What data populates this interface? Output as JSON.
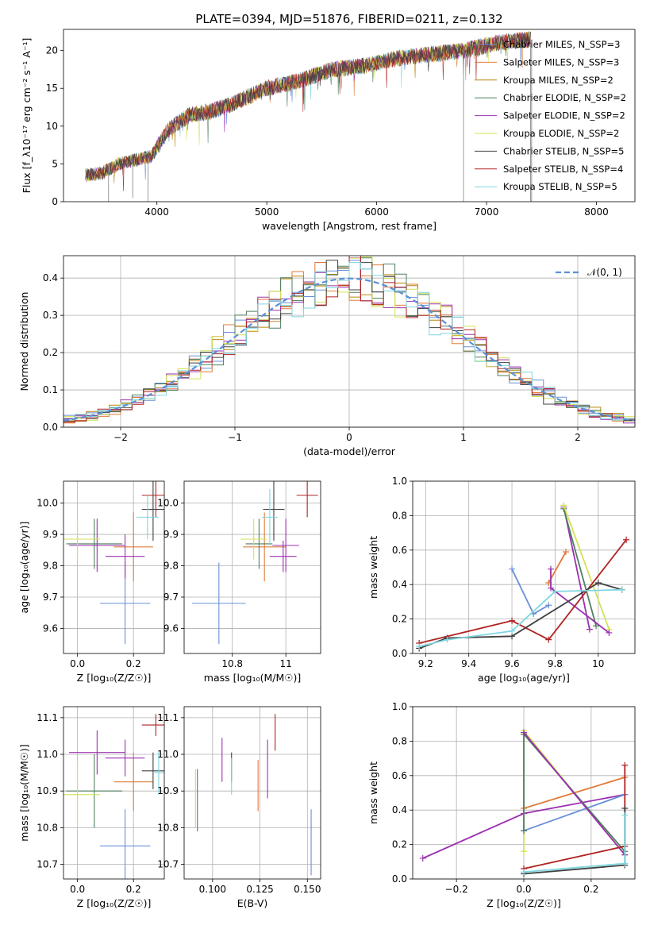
{
  "figure": {
    "title": "PLATE=0394, MJD=51876, FIBERID=0211, z=0.132"
  },
  "chart_data": [
    {
      "id": "spectrum",
      "type": "line",
      "xlabel": "wavelength [Angstrom, rest frame]",
      "ylabel": "Flux [f_λ10⁻¹⁷ erg cm⁻² s⁻¹ A⁻¹]",
      "xlim": [
        3150,
        8350
      ],
      "ylim": [
        0,
        22.8
      ],
      "xticks": [
        4000,
        5000,
        6000,
        7000,
        8000
      ],
      "yticks": [
        0,
        5,
        10,
        15,
        20
      ],
      "grid": false,
      "legend": "top-right",
      "data_envelope": {
        "x": [
          3350,
          3500,
          3650,
          3800,
          3950,
          4100,
          4300,
          4500,
          4700,
          5000,
          5300,
          5600,
          5900,
          6200,
          6500,
          6800,
          7100,
          7400
        ],
        "y": [
          3.5,
          3.8,
          5.0,
          5.5,
          6.0,
          9.5,
          11.5,
          12.0,
          13.0,
          15.0,
          16.0,
          17.5,
          18.0,
          19.0,
          19.5,
          20.0,
          21.0,
          21.5
        ]
      },
      "series": [
        {
          "name": "Chabrier MILES, N_SSP=3",
          "color": "#6a8fd8"
        },
        {
          "name": "Salpeter MILES, N_SSP=3",
          "color": "#e07b39"
        },
        {
          "name": "Kroupa MILES, N_SSP=2",
          "color": "#b8860b"
        },
        {
          "name": "Chabrier ELODIE, N_SSP=2",
          "color": "#4f7f5f"
        },
        {
          "name": "Salpeter ELODIE, N_SSP=2",
          "color": "#9b30b0"
        },
        {
          "name": "Kroupa ELODIE, N_SSP=2",
          "color": "#d4e157"
        },
        {
          "name": "Chabrier STELIB, N_SSP=5",
          "color": "#404040"
        },
        {
          "name": "Salpeter STELIB, N_SSP=4",
          "color": "#b22222"
        },
        {
          "name": "Kroupa STELIB, N_SSP=5",
          "color": "#7fd6e0"
        }
      ]
    },
    {
      "id": "residuals",
      "type": "histogram",
      "xlabel": "(data-model)/error",
      "ylabel": "Normed distribution",
      "xlim": [
        -2.5,
        2.5
      ],
      "ylim": [
        0,
        0.46
      ],
      "xticks": [
        -2,
        -1,
        0,
        1,
        2
      ],
      "yticks": [
        0.0,
        0.1,
        0.2,
        0.3,
        0.4
      ],
      "grid": true,
      "legend": "top-right",
      "reference_curve": {
        "name": "𝒩(0, 1)",
        "mean": 0,
        "sigma": 1,
        "color": "#5b8fd6"
      },
      "bins": {
        "start": -2.5,
        "width": 0.1
      }
    },
    {
      "id": "age-vs-Z",
      "type": "errorbar",
      "xlabel": "Z [log₁₀(Z/Z☉)]",
      "ylabel": "age  [log₁₀(age/yr)]",
      "xlim": [
        -0.05,
        0.31
      ],
      "ylim": [
        9.52,
        10.07
      ],
      "xticks": [
        0.0,
        0.2
      ],
      "yticks": [
        9.6,
        9.7,
        9.8,
        9.9,
        10.0
      ],
      "grid": true,
      "points": [
        {
          "series": 0,
          "x": 0.17,
          "xerr": 0.09,
          "y": 9.68,
          "yerr": 0.13
        },
        {
          "series": 1,
          "x": 0.2,
          "xerr": 0.07,
          "y": 9.86,
          "yerr": 0.11
        },
        {
          "series": 3,
          "x": 0.06,
          "xerr": 0.1,
          "y": 9.87,
          "yerr": 0.08
        },
        {
          "series": 4,
          "x": 0.07,
          "xerr": 0.1,
          "y": 9.865,
          "yerr": 0.085
        },
        {
          "series": 5,
          "x": 0.0,
          "xerr": 0.08,
          "y": 9.885,
          "yerr": 0.065
        },
        {
          "series": 6,
          "x": 0.27,
          "xerr": 0.04,
          "y": 9.98,
          "yerr": 0.1
        },
        {
          "series": 7,
          "x": 0.28,
          "xerr": 0.05,
          "y": 10.025,
          "yerr": 0.07
        },
        {
          "series": 8,
          "x": 0.25,
          "xerr": 0.04,
          "y": 9.955,
          "yerr": 0.07
        },
        {
          "series": 4,
          "x": 0.17,
          "xerr": 0.07,
          "y": 9.83,
          "yerr": 0.07
        }
      ]
    },
    {
      "id": "age-vs-mass",
      "type": "errorbar",
      "xlabel": "mass [log₁₀(M/M☉)]",
      "ylabel": "",
      "xlim": [
        10.62,
        11.13
      ],
      "ylim": [
        9.52,
        10.07
      ],
      "xticks": [
        10.8,
        11.0
      ],
      "yticks": [
        9.6,
        9.7,
        9.8,
        9.9,
        10.0
      ],
      "grid": true,
      "points": [
        {
          "series": 0,
          "x": 10.75,
          "xerr": 0.1,
          "y": 9.68,
          "yerr": 0.13
        },
        {
          "series": 1,
          "x": 10.92,
          "xerr": 0.08,
          "y": 9.86,
          "yerr": 0.11
        },
        {
          "series": 3,
          "x": 10.9,
          "xerr": 0.05,
          "y": 9.87,
          "yerr": 0.08
        },
        {
          "series": 4,
          "x": 11.0,
          "xerr": 0.05,
          "y": 9.865,
          "yerr": 0.085
        },
        {
          "series": 5,
          "x": 10.88,
          "xerr": 0.05,
          "y": 9.885,
          "yerr": 0.065
        },
        {
          "series": 6,
          "x": 10.955,
          "xerr": 0.04,
          "y": 9.98,
          "yerr": 0.1
        },
        {
          "series": 7,
          "x": 11.08,
          "xerr": 0.04,
          "y": 10.025,
          "yerr": 0.07
        },
        {
          "series": 8,
          "x": 10.94,
          "xerr": 0.03,
          "y": 9.955,
          "yerr": 0.09
        },
        {
          "series": 4,
          "x": 10.99,
          "xerr": 0.05,
          "y": 9.83,
          "yerr": 0.05
        }
      ]
    },
    {
      "id": "weight-vs-age",
      "type": "line",
      "xlabel": "age  [log₁₀(age/yr)]",
      "ylabel": "mass weight",
      "xlim": [
        9.14,
        10.17
      ],
      "ylim": [
        0,
        1.0
      ],
      "xticks": [
        9.2,
        9.4,
        9.6,
        9.8,
        10.0
      ],
      "yticks": [
        0.0,
        0.2,
        0.4,
        0.6,
        0.8,
        1.0
      ],
      "grid": true,
      "lines": [
        {
          "series": 0,
          "x": [
            9.6,
            9.7,
            9.77
          ],
          "y": [
            0.49,
            0.23,
            0.28
          ]
        },
        {
          "series": 1,
          "x": [
            9.77,
            9.85
          ],
          "y": [
            0.41,
            0.59
          ]
        },
        {
          "series": 4,
          "x": [
            9.84,
            9.96
          ],
          "y": [
            0.85,
            0.14
          ]
        },
        {
          "series": 3,
          "x": [
            9.84,
            9.99
          ],
          "y": [
            0.84,
            0.16
          ]
        },
        {
          "series": 5,
          "x": [
            9.84,
            10.05
          ],
          "y": [
            0.86,
            0.14
          ]
        },
        {
          "series": 4,
          "x": [
            9.78,
            9.78,
            10.05
          ],
          "y": [
            0.49,
            0.38,
            0.12
          ]
        },
        {
          "series": 7,
          "x": [
            9.17,
            9.6,
            9.77,
            10.13
          ],
          "y": [
            0.06,
            0.19,
            0.08,
            0.66
          ]
        },
        {
          "series": 6,
          "x": [
            9.17,
            9.3,
            9.6,
            10.0,
            10.11
          ],
          "y": [
            0.03,
            0.09,
            0.1,
            0.41,
            0.37
          ]
        },
        {
          "series": 8,
          "x": [
            9.17,
            9.3,
            9.6,
            9.8,
            10.11
          ],
          "y": [
            0.04,
            0.08,
            0.13,
            0.36,
            0.37
          ]
        }
      ]
    },
    {
      "id": "mass-vs-Z",
      "type": "errorbar",
      "xlabel": "Z [log₁₀(Z/Z☉)]",
      "ylabel": "mass [log₁₀(M/M☉)]",
      "xlim": [
        -0.05,
        0.31
      ],
      "ylim": [
        10.66,
        11.13
      ],
      "xticks": [
        0.0,
        0.2
      ],
      "yticks": [
        10.7,
        10.8,
        10.9,
        11.0,
        11.1
      ],
      "grid": true,
      "points": [
        {
          "series": 0,
          "x": 0.17,
          "xerr": 0.09,
          "y": 10.75,
          "yerr": 0.1
        },
        {
          "series": 1,
          "x": 0.2,
          "xerr": 0.07,
          "y": 10.925,
          "yerr": 0.08
        },
        {
          "series": 3,
          "x": 0.06,
          "xerr": 0.1,
          "y": 10.9,
          "yerr": 0.1
        },
        {
          "series": 4,
          "x": 0.07,
          "xerr": 0.1,
          "y": 11.005,
          "yerr": 0.06
        },
        {
          "series": 5,
          "x": 0.0,
          "xerr": 0.08,
          "y": 10.89,
          "yerr": 0.09
        },
        {
          "series": 6,
          "x": 0.27,
          "xerr": 0.04,
          "y": 10.955,
          "yerr": 0.05
        },
        {
          "series": 7,
          "x": 0.28,
          "xerr": 0.05,
          "y": 11.08,
          "yerr": 0.03
        },
        {
          "series": 8,
          "x": 0.29,
          "xerr": 0.02,
          "y": 10.95,
          "yerr": 0.06
        },
        {
          "series": 4,
          "x": 0.17,
          "xerr": 0.07,
          "y": 10.99,
          "yerr": 0.05
        }
      ]
    },
    {
      "id": "mass-vs-EBV",
      "type": "errorbar",
      "xlabel": "E(B-V)",
      "ylabel": "",
      "xlim": [
        0.085,
        0.157
      ],
      "ylim": [
        10.66,
        11.13
      ],
      "xticks": [
        0.1,
        0.125,
        0.15
      ],
      "xtick_labels": [
        "0.100",
        "0.125",
        "0.150"
      ],
      "yticks": [
        10.7,
        10.8,
        10.9,
        11.0,
        11.1
      ],
      "grid": true,
      "points": [
        {
          "series": 0,
          "x": 0.152,
          "xerr": 0,
          "y": 10.76,
          "yerr": 0.09
        },
        {
          "series": 1,
          "x": 0.124,
          "xerr": 0,
          "y": 10.915,
          "yerr": 0.07
        },
        {
          "series": 3,
          "x": 0.092,
          "xerr": 0,
          "y": 10.875,
          "yerr": 0.085
        },
        {
          "series": 4,
          "x": 0.105,
          "xerr": 0,
          "y": 10.985,
          "yerr": 0.06
        },
        {
          "series": 5,
          "x": 0.091,
          "xerr": 0,
          "y": 10.88,
          "yerr": 0.08
        },
        {
          "series": 6,
          "x": 0.11,
          "xerr": 0,
          "y": 10.965,
          "yerr": 0.04
        },
        {
          "series": 7,
          "x": 0.133,
          "xerr": 0,
          "y": 11.06,
          "yerr": 0.05
        },
        {
          "series": 8,
          "x": 0.11,
          "xerr": 0,
          "y": 10.94,
          "yerr": 0.05
        },
        {
          "series": 4,
          "x": 0.129,
          "xerr": 0,
          "y": 10.96,
          "yerr": 0.08
        }
      ]
    },
    {
      "id": "weight-vs-Z",
      "type": "line",
      "xlabel": "Z [log₁₀(Z/Z☉)]",
      "ylabel": "mass weight",
      "xlim": [
        -0.33,
        0.33
      ],
      "ylim": [
        0,
        1.0
      ],
      "xticks": [
        -0.2,
        0.0,
        0.2
      ],
      "yticks": [
        0.0,
        0.2,
        0.4,
        0.6,
        0.8,
        1.0
      ],
      "grid": true,
      "lines": [
        {
          "series": 4,
          "x": [
            -0.3,
            0.0,
            0.3
          ],
          "y": [
            0.12,
            0.38,
            0.49
          ]
        },
        {
          "series": 0,
          "x": [
            0.0,
            0.3
          ],
          "y": [
            0.28,
            0.49
          ]
        },
        {
          "series": 1,
          "x": [
            0.0,
            0.3
          ],
          "y": [
            0.41,
            0.59
          ]
        },
        {
          "series": 5,
          "x": [
            0.0,
            0.0,
            0.3
          ],
          "y": [
            0.16,
            0.86,
            0.14
          ]
        },
        {
          "series": 3,
          "x": [
            0.0,
            0.0,
            0.3
          ],
          "y": [
            0.28,
            0.84,
            0.16
          ]
        },
        {
          "series": 4,
          "x": [
            0.0,
            0.3
          ],
          "y": [
            0.85,
            0.14
          ]
        },
        {
          "series": 7,
          "x": [
            0.0,
            0.3,
            0.3
          ],
          "y": [
            0.06,
            0.19,
            0.66
          ]
        },
        {
          "series": 6,
          "x": [
            0.0,
            0.3,
            0.3
          ],
          "y": [
            0.03,
            0.08,
            0.41
          ]
        },
        {
          "series": 8,
          "x": [
            0.0,
            0.3,
            0.3
          ],
          "y": [
            0.04,
            0.09,
            0.37
          ]
        }
      ]
    }
  ]
}
